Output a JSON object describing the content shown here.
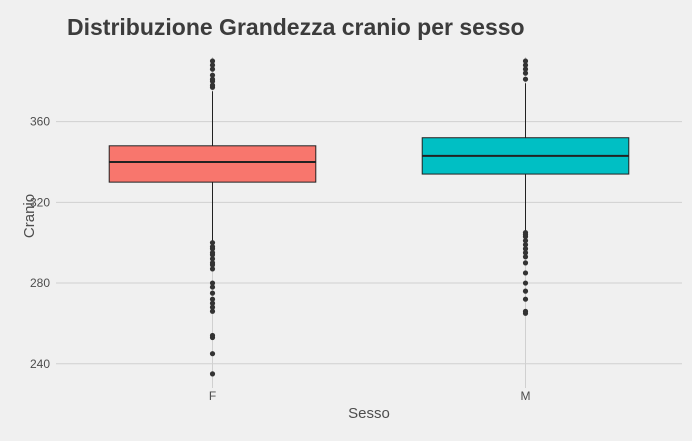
{
  "chart_data": {
    "type": "box",
    "title": "Distribuzione Grandezza cranio per sesso",
    "xlabel": "Sesso",
    "ylabel": "Cranio",
    "ylim": [
      228,
      392
    ],
    "yticks": [
      240,
      280,
      320,
      360
    ],
    "grid": true,
    "categories": [
      "F",
      "M"
    ],
    "colors": {
      "F": "#f8766d",
      "M": "#00bfc4",
      "outlier": "#333333",
      "grid": "#d0d0d0",
      "background": "#f0f0f0"
    },
    "boxes": [
      {
        "category": "F",
        "whisker_low": 301,
        "q1": 330,
        "median": 340,
        "q3": 348,
        "whisker_high": 375,
        "outliers": [
          235,
          245,
          253,
          254,
          266,
          268,
          270,
          272,
          275,
          278,
          280,
          287,
          289,
          290,
          292,
          294,
          295,
          297,
          298,
          300,
          377,
          378,
          380,
          381,
          383,
          386,
          388,
          390
        ]
      },
      {
        "category": "M",
        "whisker_low": 306,
        "q1": 334,
        "median": 343,
        "q3": 352,
        "whisker_high": 379,
        "outliers": [
          265,
          266,
          272,
          276,
          280,
          285,
          290,
          293,
          295,
          297,
          299,
          301,
          303,
          304,
          305,
          381,
          384,
          386,
          388,
          390
        ]
      }
    ]
  }
}
